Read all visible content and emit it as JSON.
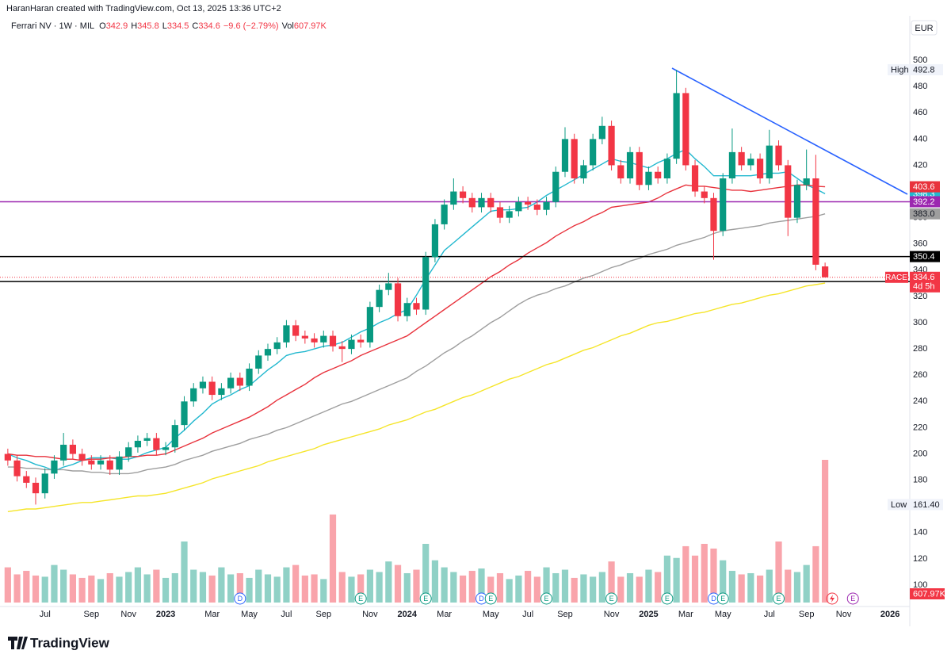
{
  "header": {
    "credit": "HaranHaran created with TradingView.com, Oct 13, 2025 13:36 UTC+2"
  },
  "footer": {
    "brand": "TradingView"
  },
  "chart_data": {
    "type": "candlestick",
    "title": "Ferrari NV · 1W · MIL",
    "legend_labels": [
      "O",
      "H",
      "L",
      "C",
      "Vol"
    ],
    "change": "−9.6 (−2.79%)",
    "currency": "EUR",
    "symbol": "RACE",
    "countdown": "4d 5h",
    "markers": {
      "high": "High",
      "low": "Low",
      "low_value_label": "161.40"
    },
    "up_color": "#089981",
    "down_color": "#f23645",
    "categories": [
      null,
      null,
      null,
      null,
      "Jul",
      null,
      null,
      null,
      null,
      "Sep",
      null,
      null,
      null,
      "Nov",
      null,
      null,
      null,
      "2023",
      null,
      null,
      null,
      null,
      "Mar",
      null,
      null,
      null,
      "May",
      null,
      null,
      null,
      "Jul",
      null,
      null,
      null,
      "Sep",
      null,
      null,
      null,
      null,
      "Nov",
      null,
      null,
      null,
      "2024",
      null,
      null,
      null,
      "Mar",
      null,
      null,
      null,
      null,
      "May",
      null,
      null,
      null,
      "Jul",
      null,
      null,
      null,
      "Sep",
      null,
      null,
      null,
      null,
      "Nov",
      null,
      null,
      null,
      "2025",
      null,
      null,
      null,
      "Mar",
      null,
      null,
      null,
      "May",
      null,
      null,
      null,
      null,
      "Jul",
      null,
      null,
      null,
      "Sep",
      null,
      null,
      null,
      "Nov",
      null,
      null,
      null,
      null,
      "2026"
    ],
    "events": [
      null,
      null,
      null,
      null,
      null,
      null,
      null,
      null,
      null,
      null,
      null,
      null,
      null,
      null,
      null,
      null,
      null,
      null,
      null,
      null,
      null,
      null,
      null,
      null,
      null,
      "D",
      null,
      null,
      null,
      null,
      null,
      null,
      null,
      null,
      null,
      null,
      null,
      null,
      "E",
      null,
      null,
      null,
      null,
      null,
      null,
      "E",
      null,
      null,
      null,
      null,
      null,
      "D",
      "E",
      null,
      null,
      null,
      null,
      null,
      "E",
      null,
      null,
      null,
      null,
      null,
      null,
      "E",
      null,
      null,
      null,
      null,
      null,
      "E",
      null,
      null,
      null,
      null,
      "D",
      "E",
      null,
      null,
      null,
      null,
      null,
      "E",
      null,
      null,
      null,
      null,
      null,
      null,
      null,
      "E",
      null,
      null,
      null,
      null
    ],
    "open": [
      200,
      195,
      183,
      178,
      170,
      185,
      195,
      207,
      200,
      195,
      192,
      195,
      188,
      198,
      205,
      210,
      212,
      203,
      205,
      222,
      240,
      250,
      255,
      245,
      250,
      258,
      252,
      265,
      275,
      280,
      285,
      298,
      290,
      288,
      285,
      290,
      282,
      280,
      287,
      285,
      312,
      325,
      330,
      305,
      315,
      310,
      350,
      375,
      390,
      400,
      395,
      388,
      395,
      388,
      380,
      385,
      392,
      390,
      386,
      392,
      415,
      440,
      410,
      420,
      440,
      450,
      420,
      410,
      430,
      405,
      415,
      410,
      425,
      475,
      420,
      400,
      395,
      370,
      410,
      430,
      420,
      425,
      410,
      435,
      420,
      380,
      405,
      410,
      342.9,
      null,
      null,
      null,
      null,
      null,
      null,
      null
    ],
    "high": [
      204,
      199,
      187,
      182,
      189,
      199,
      216,
      211,
      204,
      199,
      199,
      199,
      202,
      209,
      214,
      216,
      216,
      209,
      226,
      244,
      254,
      259,
      259,
      254,
      262,
      262,
      269,
      279,
      284,
      289,
      302,
      302,
      294,
      292,
      294,
      294,
      286,
      291,
      291,
      316,
      329,
      338,
      334,
      319,
      319,
      354,
      379,
      394,
      410,
      404,
      399,
      399,
      399,
      392,
      389,
      396,
      396,
      394,
      396,
      419,
      449,
      444,
      424,
      444,
      457,
      454,
      424,
      434,
      434,
      419,
      419,
      429,
      492.8,
      479,
      424,
      404,
      399,
      414,
      448,
      434,
      429,
      429,
      447,
      439,
      424,
      409,
      432,
      428,
      345.8,
      null,
      null,
      null,
      null,
      null,
      null,
      null
    ],
    "low": [
      191,
      179,
      174,
      161.4,
      166,
      181,
      191,
      196,
      191,
      188,
      188,
      184,
      184,
      194,
      201,
      206,
      199,
      199,
      201,
      218,
      236,
      246,
      241,
      241,
      246,
      248,
      248,
      261,
      271,
      276,
      281,
      286,
      284,
      281,
      281,
      278,
      270,
      276,
      281,
      281,
      308,
      321,
      301,
      301,
      306,
      306,
      346,
      371,
      386,
      391,
      384,
      384,
      384,
      376,
      376,
      381,
      386,
      382,
      382,
      388,
      411,
      406,
      406,
      416,
      436,
      416,
      406,
      406,
      401,
      401,
      406,
      406,
      421,
      416,
      396,
      391,
      348,
      366,
      406,
      416,
      416,
      406,
      406,
      416,
      366,
      376,
      401,
      340,
      334.5,
      null,
      null,
      null,
      null,
      null,
      null,
      null
    ],
    "close": [
      195,
      183,
      178,
      170,
      185,
      195,
      207,
      200,
      195,
      192,
      195,
      188,
      198,
      205,
      210,
      212,
      203,
      205,
      222,
      240,
      250,
      255,
      245,
      250,
      258,
      252,
      265,
      275,
      280,
      285,
      298,
      290,
      288,
      285,
      290,
      282,
      280,
      287,
      285,
      312,
      325,
      330,
      305,
      315,
      310,
      350,
      375,
      390,
      400,
      395,
      388,
      395,
      388,
      380,
      385,
      392,
      390,
      386,
      392,
      415,
      440,
      410,
      420,
      440,
      450,
      420,
      410,
      430,
      405,
      415,
      410,
      425,
      475,
      420,
      400,
      395,
      370,
      410,
      430,
      420,
      425,
      410,
      435,
      420,
      380,
      405,
      410,
      344.2,
      334.6,
      null,
      null,
      null,
      null,
      null,
      null,
      null
    ],
    "volume": [
      150,
      120,
      135,
      115,
      110,
      160,
      140,
      120,
      105,
      115,
      100,
      125,
      110,
      130,
      150,
      120,
      140,
      105,
      125,
      260,
      140,
      130,
      115,
      150,
      120,
      125,
      105,
      140,
      120,
      110,
      150,
      160,
      115,
      120,
      100,
      375,
      130,
      110,
      120,
      140,
      130,
      175,
      160,
      125,
      140,
      250,
      180,
      150,
      130,
      115,
      135,
      145,
      110,
      125,
      100,
      115,
      135,
      110,
      150,
      125,
      140,
      105,
      120,
      110,
      130,
      175,
      110,
      125,
      110,
      140,
      130,
      200,
      190,
      240,
      200,
      250,
      230,
      180,
      135,
      120,
      125,
      115,
      140,
      260,
      140,
      130,
      160,
      240,
      607.97,
      null,
      null,
      null,
      null,
      null,
      null,
      null
    ],
    "volume_tag": "607.97K",
    "series": [
      {
        "color": "#22b8cf",
        "values": [
          200,
          197,
          195,
          192,
          190,
          187,
          190,
          192,
          195,
          197,
          197,
          197,
          196,
          196,
          198,
          201,
          203,
          205,
          212,
          218,
          225,
          231,
          238,
          242,
          245,
          249,
          252,
          258,
          264,
          269,
          275,
          277,
          278,
          280,
          282,
          283,
          285,
          289,
          293,
          296,
          300,
          303,
          307,
          310,
          321,
          333,
          344,
          355,
          361,
          367,
          373,
          379,
          385,
          386,
          386,
          387,
          388,
          392,
          397,
          401,
          405,
          409,
          413,
          417,
          421,
          425,
          423,
          422,
          420,
          418,
          422,
          425,
          429,
          432,
          425,
          419,
          412,
          412,
          412,
          412,
          412,
          413,
          414,
          414,
          415,
          410,
          405,
          402,
          398.3,
          null,
          null,
          null,
          null,
          null,
          null,
          null
        ]
      },
      {
        "color": "#e8323c",
        "values": [
          200,
          199,
          199,
          198,
          198,
          197,
          196,
          196,
          195,
          196,
          196,
          197,
          197,
          198,
          198,
          199,
          199,
          200,
          203,
          206,
          209,
          212,
          216,
          219,
          222,
          225,
          228,
          232,
          236,
          241,
          245,
          249,
          253,
          258,
          262,
          265,
          268,
          271,
          275,
          278,
          281,
          284,
          287,
          290,
          295,
          300,
          305,
          310,
          315,
          320,
          325,
          330,
          335,
          339,
          344,
          348,
          353,
          357,
          361,
          366,
          370,
          374,
          377,
          381,
          384,
          388,
          389,
          390,
          391,
          392,
          395,
          399,
          402,
          405,
          404,
          404,
          403,
          402,
          401,
          401,
          400,
          401,
          402,
          403,
          404,
          405,
          405,
          404,
          403.6,
          null,
          null,
          null,
          null,
          null,
          null,
          null
        ]
      },
      {
        "color": "#9e9e9e",
        "last_value_label": "383.0",
        "values": [
          190,
          190,
          189,
          189,
          188,
          188,
          188,
          187,
          187,
          186,
          186,
          185,
          185,
          185,
          186,
          188,
          189,
          190,
          192,
          195,
          197,
          199,
          202,
          204,
          206,
          208,
          211,
          213,
          215,
          218,
          220,
          223,
          226,
          229,
          232,
          235,
          238,
          240,
          243,
          246,
          249,
          252,
          255,
          258,
          263,
          267,
          272,
          277,
          281,
          286,
          290,
          295,
          300,
          304,
          309,
          314,
          318,
          321,
          323,
          326,
          328,
          331,
          334,
          336,
          339,
          342,
          344,
          347,
          349,
          352,
          354,
          356,
          359,
          361,
          363,
          365,
          368,
          370,
          371,
          372,
          373,
          374,
          376,
          377,
          378,
          379,
          380,
          381,
          383,
          null,
          null,
          null,
          null,
          null,
          null,
          null
        ]
      },
      {
        "color": "#f5e52a",
        "values": [
          156,
          157,
          158,
          158,
          159,
          160,
          161,
          162,
          163,
          163,
          164,
          165,
          166,
          167,
          168,
          168,
          169,
          170,
          172,
          174,
          176,
          178,
          181,
          183,
          185,
          187,
          189,
          191,
          194,
          196,
          198,
          200,
          202,
          204,
          207,
          209,
          211,
          213,
          215,
          217,
          219,
          222,
          224,
          226,
          229,
          232,
          234,
          237,
          240,
          243,
          245,
          248,
          251,
          254,
          257,
          259,
          262,
          265,
          268,
          270,
          273,
          276,
          279,
          281,
          284,
          287,
          290,
          292,
          295,
          298,
          300,
          301,
          303,
          305,
          307,
          308,
          310,
          312,
          314,
          315,
          317,
          319,
          321,
          322,
          324,
          326,
          328,
          329,
          330.2,
          null,
          null,
          null,
          null,
          null,
          null,
          null
        ]
      }
    ],
    "hlines": [
      {
        "value": 392.2,
        "color": "#9c27b0"
      },
      {
        "value": 350.4,
        "color": "#000000"
      },
      {
        "value": 331.4,
        "color": "#000000"
      }
    ],
    "ylim": [
      83.7,
      509.7
    ],
    "yticks": [
      100,
      120,
      140,
      160,
      180,
      200,
      220,
      240,
      260,
      280,
      300,
      320,
      340,
      360,
      380,
      400,
      420,
      440,
      460,
      480,
      500
    ],
    "grid": false
  }
}
